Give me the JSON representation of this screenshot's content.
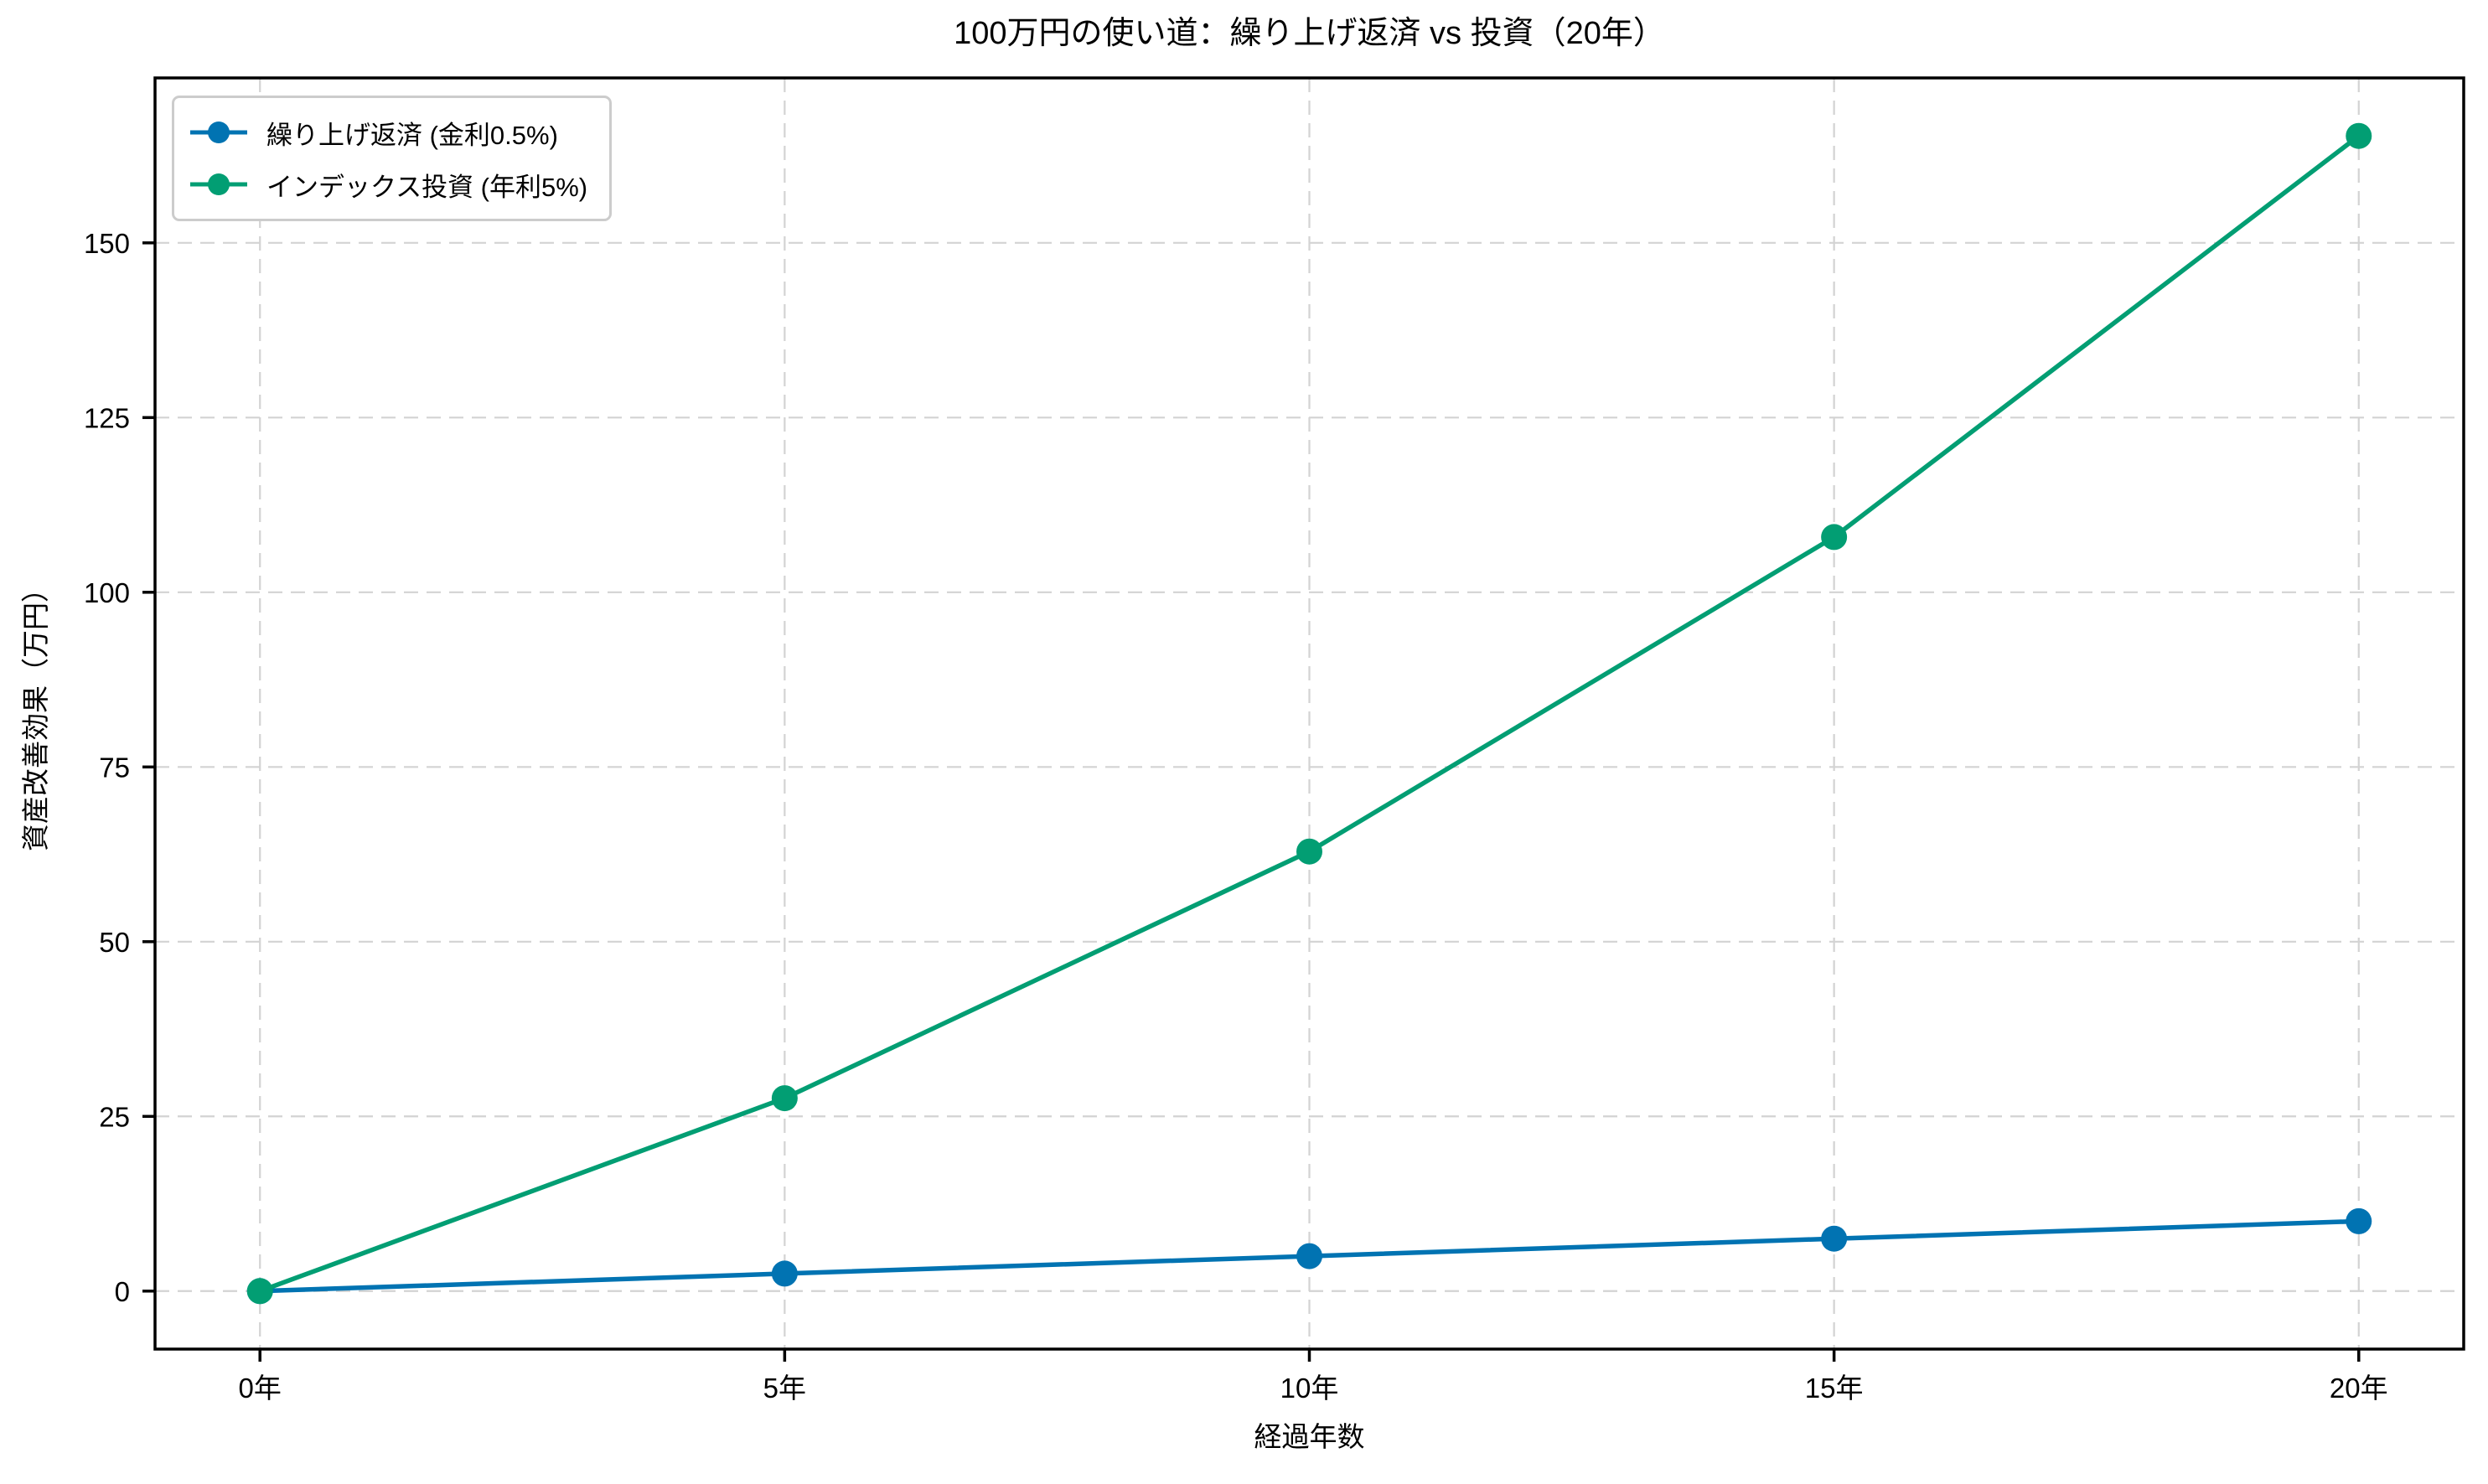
{
  "figure": {
    "background": "#ffffff",
    "text_color": "#000000",
    "grid_color": "#d3d3d3"
  },
  "chart_data": {
    "type": "line",
    "title": "100万円の使い道：繰り上げ返済 vs 投資（20年）",
    "xlabel": "経過年数",
    "ylabel": "資産改善効果（万円）",
    "x": [
      0,
      5,
      10,
      15,
      20
    ],
    "x_tick_labels": [
      "0年",
      "5年",
      "10年",
      "15年",
      "20年"
    ],
    "y_ticks": [
      0,
      25,
      50,
      75,
      100,
      125,
      150
    ],
    "xlim": [
      -1,
      21
    ],
    "ylim": [
      -8.3,
      173.6
    ],
    "grid": true,
    "grid_style": "dashed",
    "legend_position": "upper-left",
    "marker": "circle",
    "series": [
      {
        "name": "繰り上げ返済 (金利0.5%)",
        "color": "#0173b2",
        "values": [
          0,
          2.5,
          5.0,
          7.5,
          10.0
        ]
      },
      {
        "name": "インデックス投資 (年利5%)",
        "color": "#029e73",
        "values": [
          0,
          27.6,
          62.9,
          107.9,
          165.3
        ]
      }
    ]
  }
}
